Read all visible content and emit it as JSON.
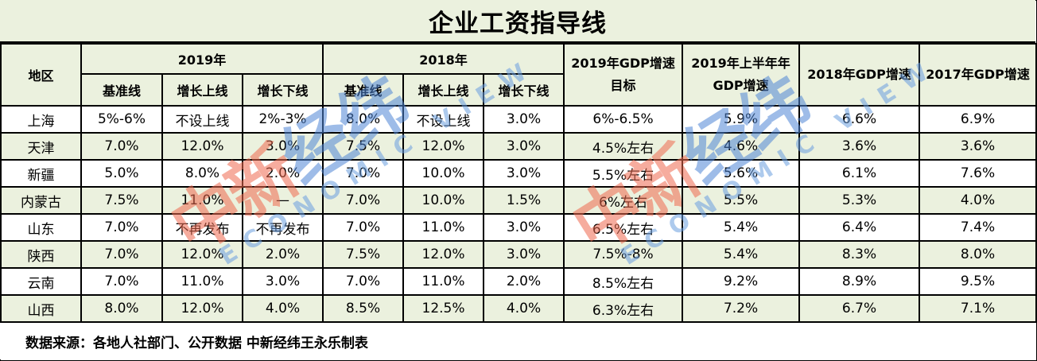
{
  "title": "企业工资指导线",
  "header": {
    "region": "地区",
    "group_2019": "2019年",
    "group_2018": "2018年",
    "sub": [
      "基准线",
      "增长上线",
      "增长下线"
    ],
    "gdp_target_2019": "2019年GDP增速目标",
    "gdp_h1_2019": "2019年上半年年GDP增速",
    "gdp_2018": "2018年GDP增速",
    "gdp_2017": "2017年GDP增速"
  },
  "rows": [
    {
      "region": "上海",
      "b19": "5%-6%",
      "u19": "不设上线",
      "l19": "2%-3%",
      "b18": "8.0%",
      "u18": "不设上线",
      "l18": "3.0%",
      "t19": "6%-6.5%",
      "h19": "5.9%",
      "g18": "6.6%",
      "g17": "6.9%"
    },
    {
      "region": "天津",
      "b19": "7.0%",
      "u19": "12.0%",
      "l19": "3.0%",
      "b18": "7.5%",
      "u18": "12.0%",
      "l18": "3.0%",
      "t19": "4.5%左右",
      "h19": "4.6%",
      "g18": "3.6%",
      "g17": "3.6%"
    },
    {
      "region": "新疆",
      "b19": "5.0%",
      "u19": "8.0%",
      "l19": "2.0%",
      "b18": "7.0%",
      "u18": "10.0%",
      "l18": "3.0%",
      "t19": "5.5%左右",
      "h19": "5.6%",
      "g18": "6.1%",
      "g17": "7.6%"
    },
    {
      "region": "内蒙古",
      "b19": "7.5%",
      "u19": "11.0%",
      "l19": "—",
      "b18": "7.0%",
      "u18": "10.0%",
      "l18": "1.5%",
      "t19": "6%左右",
      "h19": "5.5%",
      "g18": "5.3%",
      "g17": "4.0%"
    },
    {
      "region": "山东",
      "b19": "7.0%",
      "u19": "不再发布",
      "l19": "不再发布",
      "b18": "7.0%",
      "u18": "11.0%",
      "l18": "3.0%",
      "t19": "6.5%左右",
      "h19": "5.4%",
      "g18": "6.4%",
      "g17": "7.4%"
    },
    {
      "region": "陕西",
      "b19": "7.0%",
      "u19": "12.0%",
      "l19": "2.0%",
      "b18": "7.5%",
      "u18": "12.0%",
      "l18": "3.0%",
      "t19": "7.5%-8%",
      "h19": "5.4%",
      "g18": "8.3%",
      "g17": "8.0%"
    },
    {
      "region": "云南",
      "b19": "7.0%",
      "u19": "11.0%",
      "l19": "3.0%",
      "b18": "7.0%",
      "u18": "11.0%",
      "l18": "2.0%",
      "t19": "8.5%左右",
      "h19": "9.2%",
      "g18": "8.9%",
      "g17": "9.5%"
    },
    {
      "region": "山西",
      "b19": "8.0%",
      "u19": "12.0%",
      "l19": "4.0%",
      "b18": "8.5%",
      "u18": "12.5%",
      "l18": "4.0%",
      "t19": "6.3%左右",
      "h19": "7.2%",
      "g18": "6.7%",
      "g17": "7.1%"
    }
  ],
  "footer": "数据来源：各地人社部门、公开数据 中新经纬王永乐制表",
  "watermark": {
    "cn_red": "中新",
    "cn_blue": "经纬",
    "en": "ECONOMIC VIEW"
  },
  "colors": {
    "header_bg": "#ebf1de",
    "row_alt_bg": "#ebf1de",
    "border": "#000000",
    "wm_red": "#ef6a4f",
    "wm_blue": "#4f86d6"
  }
}
